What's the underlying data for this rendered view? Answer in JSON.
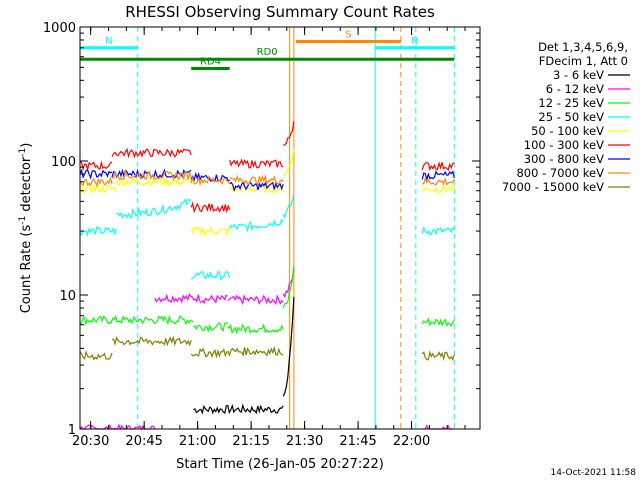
{
  "chart_data": {
    "type": "line",
    "title": "RHESSI Observing Summary Count Rates",
    "xlabel": "Start Time (26-Jan-05 20:27:22)",
    "ylabel": "Count Rate (s",
    "ylabel_sup1": "-1",
    "ylabel_mid": " detector",
    "ylabel_sup2": "-1",
    "ylabel_end": ")",
    "yscale": "log",
    "ylim": [
      1,
      1000
    ],
    "xlim_minutes": [
      20.45,
      22.32
    ],
    "y_ticks": [
      {
        "value": 1,
        "label": "1"
      },
      {
        "value": 10,
        "label": "10"
      },
      {
        "value": 100,
        "label": "100"
      },
      {
        "value": 1000,
        "label": "1000"
      }
    ],
    "x_ticks": [
      {
        "value": 20.5,
        "label": "20:30"
      },
      {
        "value": 20.75,
        "label": "20:45"
      },
      {
        "value": 21.0,
        "label": "21:00"
      },
      {
        "value": 21.25,
        "label": "21:15"
      },
      {
        "value": 21.5,
        "label": "21:30"
      },
      {
        "value": 21.75,
        "label": "21:45"
      },
      {
        "value": 22.0,
        "label": "22:00"
      }
    ],
    "legend_header": [
      "Det 1,3,4,5,6,9,",
      "FDecim 1, Att 0"
    ],
    "series": [
      {
        "name": "3 - 6 keV",
        "color": "#000000",
        "segments": [
          {
            "x": [
              20.98,
              21.4
            ],
            "value": 1.4
          },
          {
            "x": [
              21.4,
              21.45
            ],
            "value": 1.8,
            "rise_to": 10
          }
        ]
      },
      {
        "name": "6 - 12 keV",
        "color": "#ff00ff",
        "segments": [
          {
            "x": [
              20.45,
              20.8
            ],
            "value": 1
          },
          {
            "x": [
              20.8,
              21.01
            ],
            "value": 9.5
          },
          {
            "x": [
              21.01,
              21.14
            ],
            "value": 9.3
          },
          {
            "x": [
              21.14,
              21.4
            ],
            "value": 9.2
          },
          {
            "x": [
              21.4,
              21.45
            ],
            "value": 10,
            "rise_to": 15
          },
          {
            "x": [
              22.05,
              22.2
            ],
            "value": 1
          }
        ]
      },
      {
        "name": "12 - 25 keV",
        "color": "#00ff00",
        "segments": [
          {
            "x": [
              20.45,
              20.7
            ],
            "value": 6.5
          },
          {
            "x": [
              20.7,
              20.98
            ],
            "value": 6.5
          },
          {
            "x": [
              20.98,
              21.14
            ],
            "value": 5.8
          },
          {
            "x": [
              21.14,
              21.4
            ],
            "value": 5.6
          },
          {
            "x": [
              21.4,
              21.45
            ],
            "value": 8,
            "rise_to": 16
          },
          {
            "x": [
              22.05,
              22.2
            ],
            "value": 6.3
          }
        ]
      },
      {
        "name": "25 - 50 keV",
        "color": "#00ffff",
        "segments": [
          {
            "x": [
              20.45,
              20.62
            ],
            "value": 30
          },
          {
            "x": [
              20.62,
              20.97
            ],
            "value": 40,
            "rise_to": 50
          },
          {
            "x": [
              20.97,
              21.15
            ],
            "value": 14
          },
          {
            "x": [
              21.15,
              21.4
            ],
            "value": 32,
            "rise_to": 36
          },
          {
            "x": [
              21.4,
              21.45
            ],
            "value": 40,
            "rise_to": 55
          },
          {
            "x": [
              22.05,
              22.2
            ],
            "value": 30
          }
        ]
      },
      {
        "name": "50 - 100 keV",
        "color": "#ffff00",
        "segments": [
          {
            "x": [
              20.45,
              20.62
            ],
            "value": 62
          },
          {
            "x": [
              20.62,
              20.97
            ],
            "value": 70
          },
          {
            "x": [
              20.97,
              21.15
            ],
            "value": 30
          },
          {
            "x": [
              21.15,
              21.4
            ],
            "value": 62
          },
          {
            "x": [
              21.4,
              21.45
            ],
            "value": 80,
            "rise_to": 120
          },
          {
            "x": [
              22.05,
              22.2
            ],
            "value": 62
          }
        ]
      },
      {
        "name": "100 - 300 keV",
        "color": "#ff0000",
        "segments": [
          {
            "x": [
              20.45,
              20.6
            ],
            "value": 92
          },
          {
            "x": [
              20.6,
              20.97
            ],
            "value": 115
          },
          {
            "x": [
              20.97,
              21.15
            ],
            "value": 45
          },
          {
            "x": [
              21.15,
              21.4
            ],
            "value": 95
          },
          {
            "x": [
              21.4,
              21.45
            ],
            "value": 130,
            "rise_to": 200
          },
          {
            "x": [
              22.05,
              22.2
            ],
            "value": 92
          }
        ]
      },
      {
        "name": "300 - 800 keV",
        "color": "#0000ff",
        "segments": [
          {
            "x": [
              20.45,
              20.6
            ],
            "value": 80
          },
          {
            "x": [
              20.6,
              20.97
            ],
            "value": 80
          },
          {
            "x": [
              20.97,
              21.15
            ],
            "value": 75
          },
          {
            "x": [
              21.15,
              21.4
            ],
            "value": 65
          },
          {
            "x": [
              22.05,
              22.2
            ],
            "value": 78
          }
        ]
      },
      {
        "name": "800 - 7000 keV",
        "color": "#ff8800",
        "segments": [
          {
            "x": [
              20.45,
              20.6
            ],
            "value": 70
          },
          {
            "x": [
              20.6,
              20.97
            ],
            "value": 78
          },
          {
            "x": [
              20.97,
              21.15
            ],
            "value": 72
          },
          {
            "x": [
              21.15,
              21.4
            ],
            "value": 72
          },
          {
            "x": [
              22.05,
              22.2
            ],
            "value": 70
          }
        ]
      },
      {
        "name": "7000 - 15000 keV",
        "color": "#808000",
        "segments": [
          {
            "x": [
              20.45,
              20.6
            ],
            "value": 3.5
          },
          {
            "x": [
              20.6,
              20.97
            ],
            "value": 4.5
          },
          {
            "x": [
              20.97,
              21.15
            ],
            "value": 3.7
          },
          {
            "x": [
              21.15,
              21.4
            ],
            "value": 3.8
          },
          {
            "x": [
              22.05,
              22.2
            ],
            "value": 3.5
          }
        ]
      }
    ],
    "flags": [
      {
        "label": "N",
        "color": "#00ffff",
        "x": [
          20.45,
          20.72
        ],
        "y": 700
      },
      {
        "label": "N",
        "color": "#00ffff",
        "x": [
          21.83,
          22.2
        ],
        "y": 700
      },
      {
        "label": "S",
        "color": "#ff8800",
        "x": [
          21.46,
          21.95
        ],
        "y": 780
      },
      {
        "label": "RD0",
        "color": "#008800",
        "x": [
          20.45,
          22.2
        ],
        "y": 575
      },
      {
        "label": "RD4",
        "color": "#008800",
        "x": [
          20.97,
          21.15
        ],
        "y": 490
      }
    ],
    "vlines": [
      {
        "x": 20.45,
        "color": "#00ffff",
        "style": "solid"
      },
      {
        "x": 20.72,
        "color": "#00ffff",
        "style": "dashed"
      },
      {
        "x": 21.43,
        "color": "#ff8800",
        "style": "solid"
      },
      {
        "x": 21.45,
        "color": "#ff8800",
        "style": "solid"
      },
      {
        "x": 21.83,
        "color": "#00ffff",
        "style": "solid"
      },
      {
        "x": 21.95,
        "color": "#ff8800",
        "style": "dashed"
      },
      {
        "x": 22.02,
        "color": "#00ffff",
        "style": "dashed"
      },
      {
        "x": 22.2,
        "color": "#00ffff",
        "style": "dashed"
      }
    ],
    "footer": "14-Oct-2021 11:58"
  }
}
